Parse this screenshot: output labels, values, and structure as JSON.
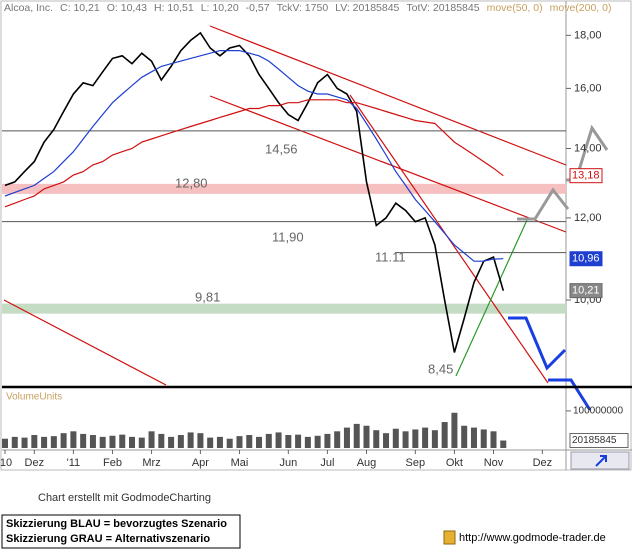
{
  "chart_data": {
    "type": "line",
    "title": "Alcoa, Inc.",
    "header_stats": [
      "C: 10,21",
      "O: 10,43",
      "H: 10,51",
      "L: 10,20",
      "-0,57",
      "TckV: 1750",
      "LV: 20185845",
      "TotV: 20185845"
    ],
    "log_scale": true,
    "ylim": [
      8.28,
      19.47
    ],
    "yticks": [
      {
        "value": 18,
        "label": "18,00"
      },
      {
        "value": 16,
        "label": "16,00"
      },
      {
        "value": 14,
        "label": "14,00"
      },
      {
        "value": 12,
        "label": "12,00"
      },
      {
        "value": 10,
        "label": "10,00"
      }
    ],
    "categories": [
      "'10",
      null,
      null,
      "Dez",
      null,
      null,
      null,
      "'11",
      null,
      null,
      null,
      "Feb",
      null,
      null,
      null,
      "Mrz",
      null,
      null,
      null,
      null,
      "Apr",
      null,
      null,
      null,
      "Mai",
      null,
      null,
      null,
      null,
      "Jun",
      null,
      null,
      null,
      "Jul",
      null,
      null,
      null,
      "Aug",
      null,
      null,
      null,
      null,
      "Sep",
      null,
      null,
      null,
      "Okt",
      null,
      null,
      null,
      "Nov",
      null,
      null,
      null,
      null,
      "Dez",
      null
    ],
    "series": [
      {
        "color": "#000000",
        "values": [
          12.9,
          13.0,
          13.3,
          13.6,
          14.2,
          14.6,
          15.2,
          15.8,
          16.2,
          16.1,
          16.6,
          17.1,
          17.2,
          16.9,
          17.3,
          17.0,
          16.3,
          16.8,
          17.4,
          17.8,
          18.1,
          17.5,
          17.2,
          17.5,
          17.6,
          17.2,
          16.5,
          16.0,
          15.5,
          15.1,
          14.9,
          15.5,
          16.2,
          16.5,
          16.0,
          15.8,
          15.2,
          13.0,
          11.8,
          12.0,
          12.4,
          12.2,
          11.9,
          12.0,
          11.3,
          10.0,
          8.9,
          9.6,
          10.4,
          10.9,
          11.0,
          10.21,
          null,
          null,
          null,
          null,
          null
        ],
        "last_label": "10,21"
      },
      {
        "name": "move(50, 0)",
        "color": "#1f3fd0",
        "values": [
          12.6,
          12.7,
          12.8,
          12.9,
          13.1,
          13.3,
          13.6,
          13.9,
          14.3,
          14.7,
          15.1,
          15.5,
          15.8,
          16.1,
          16.4,
          16.6,
          16.8,
          16.9,
          17.0,
          17.1,
          17.2,
          17.3,
          17.4,
          17.4,
          17.4,
          17.3,
          17.2,
          17.0,
          16.7,
          16.4,
          16.1,
          15.9,
          15.8,
          15.8,
          15.7,
          15.6,
          15.3,
          14.8,
          14.3,
          13.8,
          13.3,
          12.9,
          12.5,
          12.2,
          11.9,
          11.6,
          11.3,
          11.1,
          10.9,
          10.9,
          10.95,
          10.96,
          null,
          null,
          null,
          null,
          null
        ],
        "last_label": "10,96"
      },
      {
        "name": "move(200, 0)",
        "color": "#d01010",
        "values": [
          12.3,
          12.4,
          12.5,
          12.6,
          12.8,
          12.9,
          13.0,
          13.2,
          13.3,
          13.5,
          13.6,
          13.8,
          13.9,
          14.0,
          14.2,
          14.3,
          14.4,
          14.5,
          14.6,
          14.7,
          14.8,
          14.9,
          15.0,
          15.1,
          15.2,
          15.3,
          15.3,
          15.4,
          15.4,
          15.5,
          15.5,
          15.6,
          15.6,
          15.6,
          15.6,
          15.5,
          15.5,
          15.4,
          15.3,
          15.2,
          15.1,
          15.0,
          14.9,
          14.85,
          14.8,
          14.5,
          14.2,
          14.0,
          13.8,
          13.6,
          13.4,
          13.18,
          null,
          null,
          null,
          null,
          null
        ],
        "last_label": "13,18"
      }
    ],
    "levels": [
      {
        "value": 14.56,
        "label": "14,56",
        "style": "line",
        "color": "#555555"
      },
      {
        "value": 12.8,
        "label": "12,80",
        "style": "band",
        "color": "#f6c0c0"
      },
      {
        "value": 11.9,
        "label": "11,90",
        "style": "line",
        "color": "#555555"
      },
      {
        "value": 11.11,
        "label": "11.11",
        "style": "short",
        "color": "#555555"
      },
      {
        "value": 9.81,
        "label": "9,81",
        "style": "band",
        "color": "#c4dcc4"
      },
      {
        "value": 8.45,
        "label": "8,45",
        "style": "label",
        "color": "#555555"
      }
    ],
    "volume": {
      "label": "VolumeUnits",
      "color": "#555555",
      "ylim": [
        0,
        151000000
      ],
      "yticks": [
        100000000
      ],
      "last": 20185845,
      "values": [
        25000000,
        30000000,
        28000000,
        35000000,
        30000000,
        32000000,
        40000000,
        45000000,
        38000000,
        35000000,
        30000000,
        33000000,
        36000000,
        30000000,
        28000000,
        45000000,
        38000000,
        30000000,
        35000000,
        42000000,
        40000000,
        28000000,
        30000000,
        25000000,
        32000000,
        35000000,
        30000000,
        38000000,
        42000000,
        35000000,
        36000000,
        30000000,
        33000000,
        38000000,
        45000000,
        55000000,
        65000000,
        60000000,
        48000000,
        40000000,
        52000000,
        45000000,
        50000000,
        55000000,
        48000000,
        70000000,
        95000000,
        60000000,
        55000000,
        50000000,
        45000000,
        20185845,
        null,
        null,
        null,
        null,
        null
      ]
    },
    "footer": {
      "credit": "Chart erstellt mit GodmodeCharting",
      "legend_blue": "Skizzierung BLAU = bevorzugtes Szenario",
      "legend_gray": "Skizzierung GRAU = Alternativszenario",
      "url": "http://www.godmode-trader.de"
    }
  }
}
